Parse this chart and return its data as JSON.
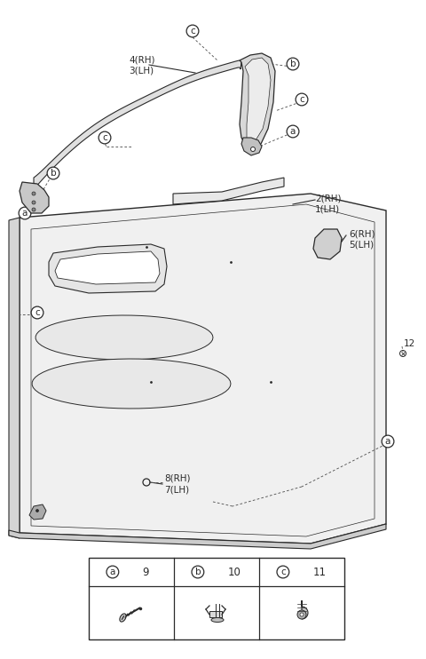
{
  "bg_color": "#ffffff",
  "line_color": "#2a2a2a",
  "fig_w": 4.8,
  "fig_h": 7.42,
  "dpi": 100,
  "labels": {
    "trim_43": "4(RH)\n3(LH)",
    "panel_21": "2(RH)\n1(LH)",
    "bracket_65": "6(RH)\n5(LH)",
    "bolt_87": "8(RH)\n7(LH)",
    "screw_12": "12",
    "leg_9": "9",
    "leg_10": "10",
    "leg_11": "11"
  },
  "circle_labels": [
    "a",
    "b",
    "c"
  ],
  "legend_items": [
    {
      "sym": "a",
      "num": "9"
    },
    {
      "sym": "b",
      "num": "10"
    },
    {
      "sym": "c",
      "num": "11"
    }
  ]
}
